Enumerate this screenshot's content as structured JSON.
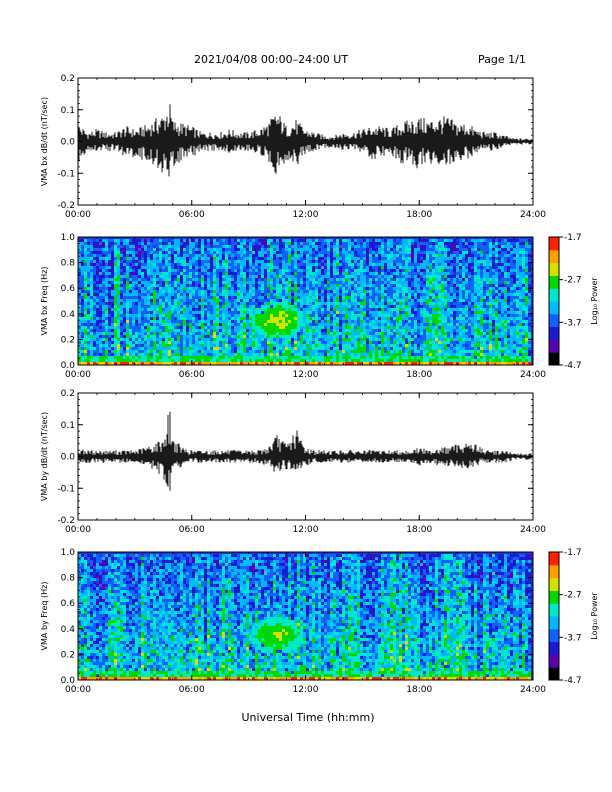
{
  "header": {
    "title": "2021/04/08  00:00–24:00 UT",
    "page": "Page 1/1"
  },
  "x_axis_title": "Universal Time (hh:mm)",
  "colors": {
    "axis": "#000000",
    "waveform": "#000000",
    "colormap": [
      "#000000",
      "#5a00b0",
      "#1a1ad0",
      "#1060ff",
      "#00b8ff",
      "#00e8c8",
      "#00d800",
      "#d8e000",
      "#ffa000",
      "#ff2000"
    ]
  },
  "chart_data": [
    {
      "type": "line",
      "ylabel": "VMA bx dB/dt (nT/sec)",
      "xlim": [
        "00:00",
        "24:00"
      ],
      "ylim": [
        -0.2,
        0.2
      ],
      "xticks": [
        "00:00",
        "06:00",
        "12:00",
        "18:00",
        "24:00"
      ],
      "yticks": [
        "-0.2",
        "-0.1",
        "0.0",
        "0.1",
        "0.2"
      ],
      "series": [
        {
          "x": [
            "00:00",
            "00:30",
            "01:00",
            "01:30",
            "02:00",
            "02:30",
            "03:00",
            "03:30",
            "04:00",
            "04:30",
            "04:50",
            "05:00",
            "05:30",
            "06:00",
            "06:30",
            "07:00",
            "07:30",
            "08:00",
            "08:30",
            "09:00",
            "09:30",
            "10:00",
            "10:30",
            "11:00",
            "11:30",
            "12:00",
            "12:30",
            "13:00",
            "13:30",
            "14:00",
            "14:30",
            "15:00",
            "15:30",
            "16:00",
            "16:30",
            "17:00",
            "17:30",
            "18:00",
            "18:30",
            "19:00",
            "19:30",
            "20:00",
            "20:30",
            "21:00",
            "21:30",
            "22:00",
            "22:30",
            "23:00",
            "23:30",
            "24:00"
          ],
          "ymax": [
            0.06,
            0.03,
            0.04,
            0.03,
            0.03,
            0.05,
            0.04,
            0.05,
            0.07,
            0.09,
            0.13,
            0.07,
            0.06,
            0.05,
            0.03,
            0.03,
            0.03,
            0.04,
            0.03,
            0.03,
            0.04,
            0.06,
            0.1,
            0.05,
            0.07,
            0.04,
            0.03,
            0.02,
            0.02,
            0.03,
            0.03,
            0.04,
            0.05,
            0.05,
            0.04,
            0.06,
            0.07,
            0.08,
            0.07,
            0.08,
            0.08,
            0.06,
            0.06,
            0.04,
            0.03,
            0.03,
            0.02,
            0.01,
            0.01,
            0.01
          ],
          "ymin": [
            -0.07,
            -0.03,
            -0.03,
            -0.03,
            -0.03,
            -0.05,
            -0.05,
            -0.06,
            -0.08,
            -0.1,
            -0.16,
            -0.08,
            -0.06,
            -0.05,
            -0.03,
            -0.03,
            -0.03,
            -0.04,
            -0.03,
            -0.03,
            -0.04,
            -0.06,
            -0.11,
            -0.06,
            -0.08,
            -0.04,
            -0.03,
            -0.02,
            -0.02,
            -0.03,
            -0.03,
            -0.04,
            -0.06,
            -0.05,
            -0.04,
            -0.07,
            -0.07,
            -0.09,
            -0.07,
            -0.08,
            -0.08,
            -0.06,
            -0.06,
            -0.04,
            -0.03,
            -0.03,
            -0.02,
            -0.01,
            -0.01,
            -0.01
          ]
        }
      ]
    },
    {
      "type": "heatmap",
      "ylabel": "VMA bx Freq (Hz)",
      "xlim": [
        "00:00",
        "24:00"
      ],
      "ylim": [
        0.0,
        1.0
      ],
      "xticks": [
        "00:00",
        "06:00",
        "12:00",
        "18:00",
        "24:00"
      ],
      "yticks": [
        "0.0",
        "0.2",
        "0.4",
        "0.6",
        "0.8",
        "1.0"
      ],
      "colorbar": {
        "label": "Log₁₀ Power",
        "min": -4.7,
        "max": -1.7,
        "ticks": [
          "-1.7",
          "-2.7",
          "-3.7",
          "-4.7"
        ]
      },
      "enhancement": {
        "x_start": "09:00",
        "x_end": "12:00",
        "f_low": 0.2,
        "f_high": 0.5,
        "peak_log_power": -2.5
      }
    },
    {
      "type": "line",
      "ylabel": "VMA by dB/dt (nT/sec)",
      "xlim": [
        "00:00",
        "24:00"
      ],
      "ylim": [
        -0.2,
        0.2
      ],
      "xticks": [
        "00:00",
        "06:00",
        "12:00",
        "18:00",
        "24:00"
      ],
      "yticks": [
        "-0.2",
        "-0.1",
        "0.0",
        "0.1",
        "0.2"
      ],
      "series": [
        {
          "x": [
            "00:00",
            "00:30",
            "01:00",
            "01:30",
            "02:00",
            "02:30",
            "03:00",
            "03:30",
            "04:00",
            "04:30",
            "04:50",
            "05:00",
            "05:30",
            "06:00",
            "06:30",
            "07:00",
            "07:30",
            "08:00",
            "08:30",
            "09:00",
            "09:30",
            "10:00",
            "10:30",
            "11:00",
            "11:30",
            "12:00",
            "12:30",
            "13:00",
            "13:30",
            "14:00",
            "14:30",
            "15:00",
            "15:30",
            "16:00",
            "16:30",
            "17:00",
            "17:30",
            "18:00",
            "18:30",
            "19:00",
            "19:30",
            "20:00",
            "20:30",
            "21:00",
            "21:30",
            "22:00",
            "22:30",
            "23:00",
            "23:30",
            "24:00"
          ],
          "ymax": [
            0.03,
            0.02,
            0.02,
            0.02,
            0.02,
            0.02,
            0.02,
            0.03,
            0.04,
            0.06,
            0.16,
            0.06,
            0.03,
            0.02,
            0.02,
            0.02,
            0.02,
            0.02,
            0.02,
            0.02,
            0.02,
            0.03,
            0.07,
            0.04,
            0.09,
            0.03,
            0.02,
            0.02,
            0.02,
            0.02,
            0.02,
            0.02,
            0.02,
            0.02,
            0.02,
            0.02,
            0.02,
            0.03,
            0.02,
            0.03,
            0.03,
            0.04,
            0.05,
            0.04,
            0.02,
            0.02,
            0.02,
            0.01,
            0.01,
            0.01
          ],
          "ymin": [
            -0.03,
            -0.02,
            -0.02,
            -0.02,
            -0.02,
            -0.02,
            -0.02,
            -0.03,
            -0.04,
            -0.07,
            -0.13,
            -0.06,
            -0.03,
            -0.02,
            -0.02,
            -0.02,
            -0.02,
            -0.02,
            -0.02,
            -0.02,
            -0.02,
            -0.03,
            -0.06,
            -0.04,
            -0.05,
            -0.03,
            -0.02,
            -0.02,
            -0.02,
            -0.02,
            -0.02,
            -0.02,
            -0.02,
            -0.02,
            -0.02,
            -0.02,
            -0.02,
            -0.03,
            -0.02,
            -0.03,
            -0.03,
            -0.04,
            -0.04,
            -0.03,
            -0.02,
            -0.02,
            -0.02,
            -0.01,
            -0.01,
            -0.01
          ]
        }
      ]
    },
    {
      "type": "heatmap",
      "ylabel": "VMA by Freq (Hz)",
      "xlim": [
        "00:00",
        "24:00"
      ],
      "ylim": [
        0.0,
        1.0
      ],
      "xticks": [
        "00:00",
        "06:00",
        "12:00",
        "18:00",
        "24:00"
      ],
      "yticks": [
        "0.0",
        "0.2",
        "0.4",
        "0.6",
        "0.8",
        "1.0"
      ],
      "colorbar": {
        "label": "Log₁₀ Power",
        "min": -4.7,
        "max": -1.7,
        "ticks": [
          "-1.7",
          "-2.7",
          "-3.7",
          "-4.7"
        ]
      },
      "enhancement": {
        "x_start": "09:00",
        "x_end": "12:00",
        "f_low": 0.2,
        "f_high": 0.5,
        "peak_log_power": -2.6
      }
    }
  ]
}
